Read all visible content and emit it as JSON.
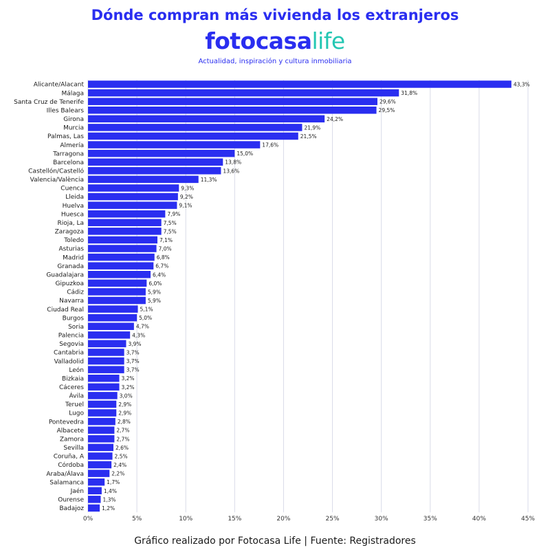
{
  "header": {
    "title": "Dónde compran más vivienda los extranjeros",
    "brand_main": "fotocasa",
    "brand_accent": "life",
    "tagline": "Actualidad, inspiración y cultura inmobiliaria"
  },
  "footer": {
    "text": "Gráfico realizado por Fotocasa Life | Fuente: Registradores"
  },
  "colors": {
    "bar": "#2a2ef0",
    "brand_blue": "#2a2ef0",
    "brand_teal": "#24c7b3",
    "grid": "#d9dbe8"
  },
  "chart_data": {
    "type": "bar",
    "orientation": "horizontal",
    "xlim": [
      0,
      45
    ],
    "x_ticks": [
      "0%",
      "5%",
      "10%",
      "15%",
      "20%",
      "25%",
      "30%",
      "35%",
      "40%",
      "45%"
    ],
    "x_tick_values": [
      0,
      5,
      10,
      15,
      20,
      25,
      30,
      35,
      40,
      45
    ],
    "grid": "vertical",
    "categories": [
      "Alicante/Alacant",
      "Málaga",
      "Santa Cruz de Tenerife",
      "Illes Balears",
      "Girona",
      "Murcia",
      "Palmas, Las",
      "Almería",
      "Tarragona",
      "Barcelona",
      "Castellón/Castelló",
      "Valencia/València",
      "Cuenca",
      "Lleida",
      "Huelva",
      "Huesca",
      "Rioja, La",
      "Zaragoza",
      "Toledo",
      "Asturias",
      "Madrid",
      "Granada",
      "Guadalajara",
      "Gipuzkoa",
      "Cádiz",
      "Navarra",
      "Ciudad Real",
      "Burgos",
      "Soria",
      "Palencia",
      "Segovia",
      "Cantabria",
      "Valladolid",
      "León",
      "Bizkaia",
      "Cáceres",
      "Ávila",
      "Teruel",
      "Lugo",
      "Pontevedra",
      "Albacete",
      "Zamora",
      "Sevilla",
      "Coruña, A",
      "Córdoba",
      "Araba/Álava",
      "Salamanca",
      "Jaén",
      "Ourense",
      "Badajoz"
    ],
    "values": [
      43.3,
      31.8,
      29.6,
      29.5,
      24.2,
      21.9,
      21.5,
      17.6,
      15.0,
      13.8,
      13.6,
      11.3,
      9.3,
      9.2,
      9.1,
      7.9,
      7.5,
      7.5,
      7.1,
      7.0,
      6.8,
      6.7,
      6.4,
      6.0,
      5.9,
      5.9,
      5.1,
      5.0,
      4.7,
      4.3,
      3.9,
      3.7,
      3.7,
      3.7,
      3.2,
      3.2,
      3.0,
      2.9,
      2.9,
      2.8,
      2.7,
      2.7,
      2.6,
      2.5,
      2.4,
      2.2,
      1.7,
      1.4,
      1.3,
      1.2
    ],
    "value_labels": [
      "43,3%",
      "31,8%",
      "29,6%",
      "29,5%",
      "24,2%",
      "21,9%",
      "21,5%",
      "17,6%",
      "15,0%",
      "13,8%",
      "13,6%",
      "11,3%",
      "9,3%",
      "9,2%",
      "9,1%",
      "7,9%",
      "7,5%",
      "7,5%",
      "7,1%",
      "7,0%",
      "6,8%",
      "6,7%",
      "6,4%",
      "6,0%",
      "5,9%",
      "5,9%",
      "5,1%",
      "5,0%",
      "4,7%",
      "4,3%",
      "3,9%",
      "3,7%",
      "3,7%",
      "3,7%",
      "3,2%",
      "3,2%",
      "3,0%",
      "2,9%",
      "2,9%",
      "2,8%",
      "2,7%",
      "2,7%",
      "2,6%",
      "2,5%",
      "2,4%",
      "2,2%",
      "1,7%",
      "1,4%",
      "1,3%",
      "1,2%"
    ]
  }
}
